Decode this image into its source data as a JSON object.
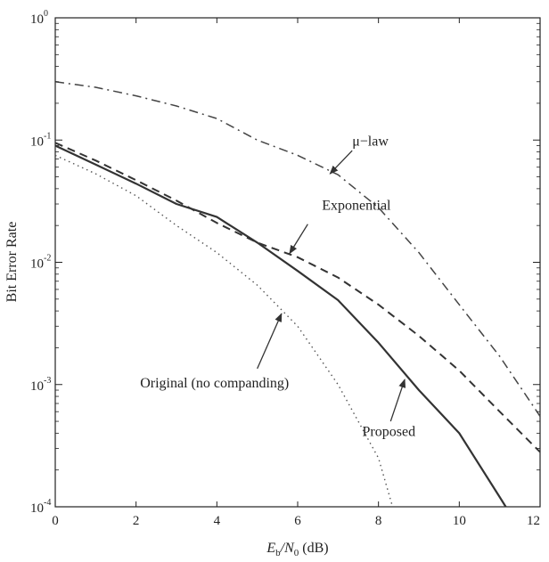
{
  "chart_data": {
    "type": "line",
    "xlabel": "E_b/N_0 (dB)",
    "xlabel_parts": {
      "main": "E",
      "sub1": "b",
      "slash": "/N",
      "sub2": "0",
      "unit": " (dB)"
    },
    "ylabel": "Bit Error Rate",
    "xlim": [
      0,
      12
    ],
    "ylim": [
      0.0001,
      1
    ],
    "yscale": "log",
    "grid": false,
    "x_ticks": [
      0,
      2,
      4,
      6,
      8,
      10,
      12
    ],
    "x_tick_labels": [
      "0",
      "2",
      "4",
      "6",
      "8",
      "10",
      "12"
    ],
    "y_ticks": [
      1,
      0.1,
      0.01,
      0.001,
      0.0001
    ],
    "y_tick_labels": [
      {
        "base": "10",
        "exp": "0"
      },
      {
        "base": "10",
        "exp": "-1"
      },
      {
        "base": "10",
        "exp": "-2"
      },
      {
        "base": "10",
        "exp": "-3"
      },
      {
        "base": "10",
        "exp": "-4"
      }
    ],
    "series": [
      {
        "name": "μ-law",
        "style": "dashdot",
        "x": [
          0,
          1,
          2,
          3,
          4,
          5,
          6,
          7,
          8,
          9,
          10,
          11,
          12
        ],
        "y": [
          0.3,
          0.27,
          0.23,
          0.19,
          0.15,
          0.1,
          0.075,
          0.052,
          0.028,
          0.012,
          0.0045,
          0.0017,
          0.00055
        ]
      },
      {
        "name": "Exponential",
        "style": "dashed",
        "x": [
          0,
          1,
          2,
          3,
          4,
          5,
          6,
          7,
          8,
          9,
          10,
          11,
          12
        ],
        "y": [
          0.095,
          0.068,
          0.047,
          0.032,
          0.021,
          0.0145,
          0.011,
          0.0075,
          0.0045,
          0.0025,
          0.0013,
          0.0006,
          0.00028
        ]
      },
      {
        "name": "Proposed",
        "style": "solid",
        "x": [
          0,
          1,
          2,
          3,
          4,
          5,
          6,
          7,
          8,
          9,
          10,
          11,
          11.15
        ],
        "y": [
          0.09,
          0.063,
          0.044,
          0.03,
          0.0235,
          0.0145,
          0.0085,
          0.0049,
          0.0022,
          0.0009,
          0.0004,
          0.00012,
          0.0001
        ]
      },
      {
        "name": "Original (no companding)",
        "style": "dotted",
        "x": [
          0,
          1,
          2,
          3,
          4,
          5,
          6,
          7,
          8,
          8.35
        ],
        "y": [
          0.075,
          0.053,
          0.035,
          0.02,
          0.012,
          0.0065,
          0.003,
          0.001,
          0.00025,
          0.0001
        ]
      }
    ],
    "annotations": [
      {
        "series": "μ-law",
        "text": "μ−law",
        "text_x": 7.35,
        "text_y": 0.09,
        "arrow_from": [
          7.35,
          0.082
        ],
        "arrow_to": [
          6.8,
          0.053
        ]
      },
      {
        "series": "Exponential",
        "text": "Exponential",
        "text_x": 6.6,
        "text_y": 0.027,
        "arrow_from": [
          6.25,
          0.0205
        ],
        "arrow_to": [
          5.8,
          0.0118
        ]
      },
      {
        "series": "Original (no companding)",
        "text": "Original (no companding)",
        "text_x": 2.1,
        "text_y": 0.00095,
        "arrow_from": [
          5.0,
          0.00135
        ],
        "arrow_to": [
          5.6,
          0.0038
        ]
      },
      {
        "series": "Proposed",
        "text": "Proposed",
        "text_x": 7.6,
        "text_y": 0.00038,
        "arrow_from": [
          8.3,
          0.0005
        ],
        "arrow_to": [
          8.65,
          0.0011
        ]
      }
    ]
  }
}
